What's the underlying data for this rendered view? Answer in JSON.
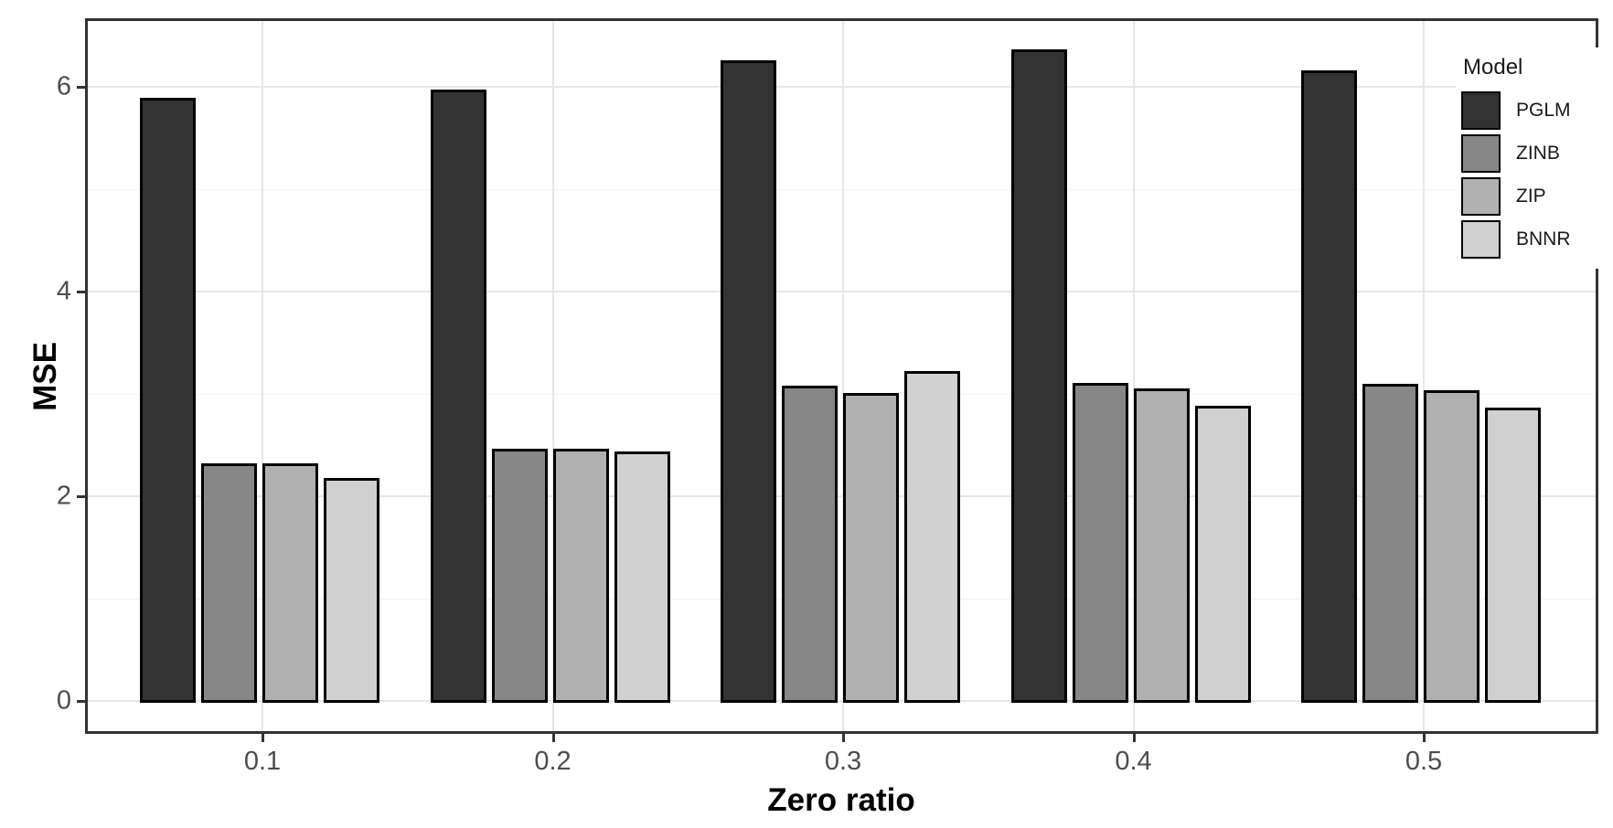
{
  "chart_data": {
    "type": "bar",
    "title": "",
    "xlabel": "Zero ratio",
    "ylabel": "MSE",
    "categories": [
      "0.1",
      "0.2",
      "0.3",
      "0.4",
      "0.5"
    ],
    "series": [
      {
        "name": "PGLM",
        "fill": "#333333",
        "values": [
          5.89,
          5.97,
          6.26,
          6.37,
          6.16
        ]
      },
      {
        "name": "ZINB",
        "fill": "#878787",
        "values": [
          2.32,
          2.46,
          3.08,
          3.11,
          3.1
        ]
      },
      {
        "name": "ZIP",
        "fill": "#b0b0b0",
        "values": [
          2.32,
          2.46,
          3.01,
          3.05,
          3.04
        ]
      },
      {
        "name": "BNNR",
        "fill": "#d0d0d0",
        "values": [
          2.18,
          2.44,
          3.22,
          2.88,
          2.87
        ]
      }
    ],
    "ylim": [
      0,
      6.67
    ],
    "ytick_labels": [
      "0",
      "2",
      "4",
      "6"
    ],
    "ytick_values": [
      0,
      2,
      4,
      6
    ],
    "yminor_values": [
      1,
      3,
      5
    ],
    "grid": true,
    "legend_title": "Model",
    "legend_position": "top-right-inside",
    "colors": {
      "bar_border": "#000000",
      "panel_border": "#333333",
      "grid_major": "#e6e6e6",
      "grid_minor": "#f2f2f2",
      "tick_label": "#4d4d4d",
      "axis_title": "#000000"
    }
  }
}
